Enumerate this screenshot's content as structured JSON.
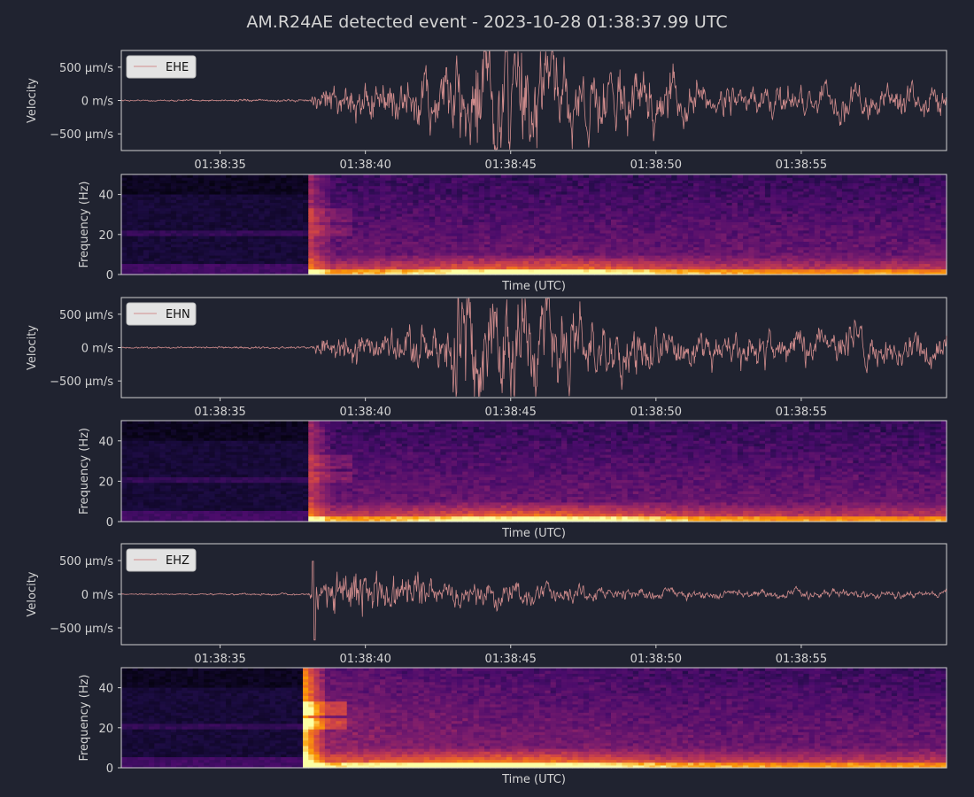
{
  "title": "AM.R24AE detected event - 2023-10-28 01:38:37.99 UTC",
  "colors": {
    "background": "#202330",
    "axes_frame": "#cfcfcf",
    "text": "#d4d4d4",
    "trace": "#d08c8c",
    "legend_bg": "#e3e3e3",
    "legend_text": "#111111"
  },
  "chart_data": [
    {
      "type": "line",
      "channel": "EHE",
      "ylabel": "Velocity",
      "legend": "EHE",
      "legend_position": "top-left",
      "y_unit": "m/s",
      "ylim": [
        -0.00075,
        0.00075
      ],
      "yticks": [
        {
          "value": 0.0005,
          "label": "500 µm/s"
        },
        {
          "value": 0,
          "label": "0 m/s"
        },
        {
          "value": -0.0005,
          "label": "−500 µm/s"
        }
      ],
      "xlim": [
        "01:38:31.6",
        "01:39:00.0"
      ],
      "xticks": [
        "01:38:35",
        "01:38:40",
        "01:38:45",
        "01:38:50",
        "01:38:55"
      ],
      "envelope": [
        {
          "t": 31.6,
          "amp": 4e-06
        },
        {
          "t": 38.1,
          "amp": 8e-06
        },
        {
          "t": 38.4,
          "amp": 8e-05
        },
        {
          "t": 41.5,
          "amp": 0.00012
        },
        {
          "t": 42.3,
          "amp": 0.00025
        },
        {
          "t": 44.0,
          "amp": 0.00055
        },
        {
          "t": 45.2,
          "amp": 0.00055
        },
        {
          "t": 46.8,
          "amp": 0.00035
        },
        {
          "t": 49.8,
          "amp": 0.00028
        },
        {
          "t": 52.0,
          "amp": 0.00016
        },
        {
          "t": 60.0,
          "amp": 0.00017
        }
      ]
    },
    {
      "type": "heatmap",
      "channel": "EHE",
      "ylabel": "Frequency (Hz)",
      "xlabel": "Time (UTC)",
      "ylim": [
        0,
        50
      ],
      "yticks": [
        "0",
        "20",
        "40"
      ],
      "colormap": "inferno",
      "onset_time": "01:38:38.1"
    },
    {
      "type": "line",
      "channel": "EHN",
      "ylabel": "Velocity",
      "legend": "EHN",
      "legend_position": "top-left",
      "y_unit": "m/s",
      "ylim": [
        -0.00075,
        0.00075
      ],
      "yticks": [
        {
          "value": 0.0005,
          "label": "500 µm/s"
        },
        {
          "value": 0,
          "label": "0 m/s"
        },
        {
          "value": -0.0005,
          "label": "−500 µm/s"
        }
      ],
      "xlim": [
        "01:38:31.6",
        "01:39:00.0"
      ],
      "xticks": [
        "01:38:35",
        "01:38:40",
        "01:38:45",
        "01:38:50",
        "01:38:55"
      ],
      "envelope": [
        {
          "t": 31.6,
          "amp": 4e-06
        },
        {
          "t": 38.1,
          "amp": 8e-06
        },
        {
          "t": 38.4,
          "amp": 6e-05
        },
        {
          "t": 41.0,
          "amp": 8e-05
        },
        {
          "t": 42.6,
          "amp": 0.00025
        },
        {
          "t": 43.3,
          "amp": 0.00055
        },
        {
          "t": 44.8,
          "amp": 0.00045
        },
        {
          "t": 47.0,
          "amp": 0.0003
        },
        {
          "t": 50.5,
          "amp": 0.0002
        },
        {
          "t": 60.0,
          "amp": 0.00017
        }
      ]
    },
    {
      "type": "heatmap",
      "channel": "EHN",
      "ylabel": "Frequency (Hz)",
      "xlabel": "Time (UTC)",
      "ylim": [
        0,
        50
      ],
      "yticks": [
        "0",
        "20",
        "40"
      ],
      "colormap": "inferno",
      "onset_time": "01:38:38.1"
    },
    {
      "type": "line",
      "channel": "EHZ",
      "ylabel": "Velocity",
      "legend": "EHZ",
      "legend_position": "top-left",
      "y_unit": "m/s",
      "ylim": [
        -0.00075,
        0.00075
      ],
      "yticks": [
        {
          "value": 0.0005,
          "label": "500 µm/s"
        },
        {
          "value": 0,
          "label": "0 m/s"
        },
        {
          "value": -0.0005,
          "label": "−500 µm/s"
        }
      ],
      "xlim": [
        "01:38:31.6",
        "01:39:00.0"
      ],
      "xticks": [
        "01:38:35",
        "01:38:40",
        "01:38:45",
        "01:38:50",
        "01:38:55"
      ],
      "spike": {
        "t": 38.2,
        "max": 0.00049,
        "min": -0.00068
      },
      "envelope": [
        {
          "t": 31.6,
          "amp": 3e-06
        },
        {
          "t": 38.0,
          "amp": 6e-06
        },
        {
          "t": 38.5,
          "amp": 0.00012
        },
        {
          "t": 44.0,
          "amp": 0.00012
        },
        {
          "t": 46.5,
          "amp": 8e-05
        },
        {
          "t": 50.0,
          "amp": 5e-05
        },
        {
          "t": 60.0,
          "amp": 4e-05
        }
      ]
    },
    {
      "type": "heatmap",
      "channel": "EHZ",
      "ylabel": "Frequency (Hz)",
      "xlabel": "Time (UTC)",
      "ylim": [
        0,
        50
      ],
      "yticks": [
        "0",
        "20",
        "40"
      ],
      "colormap": "inferno",
      "onset_time": "01:38:37.9"
    }
  ]
}
